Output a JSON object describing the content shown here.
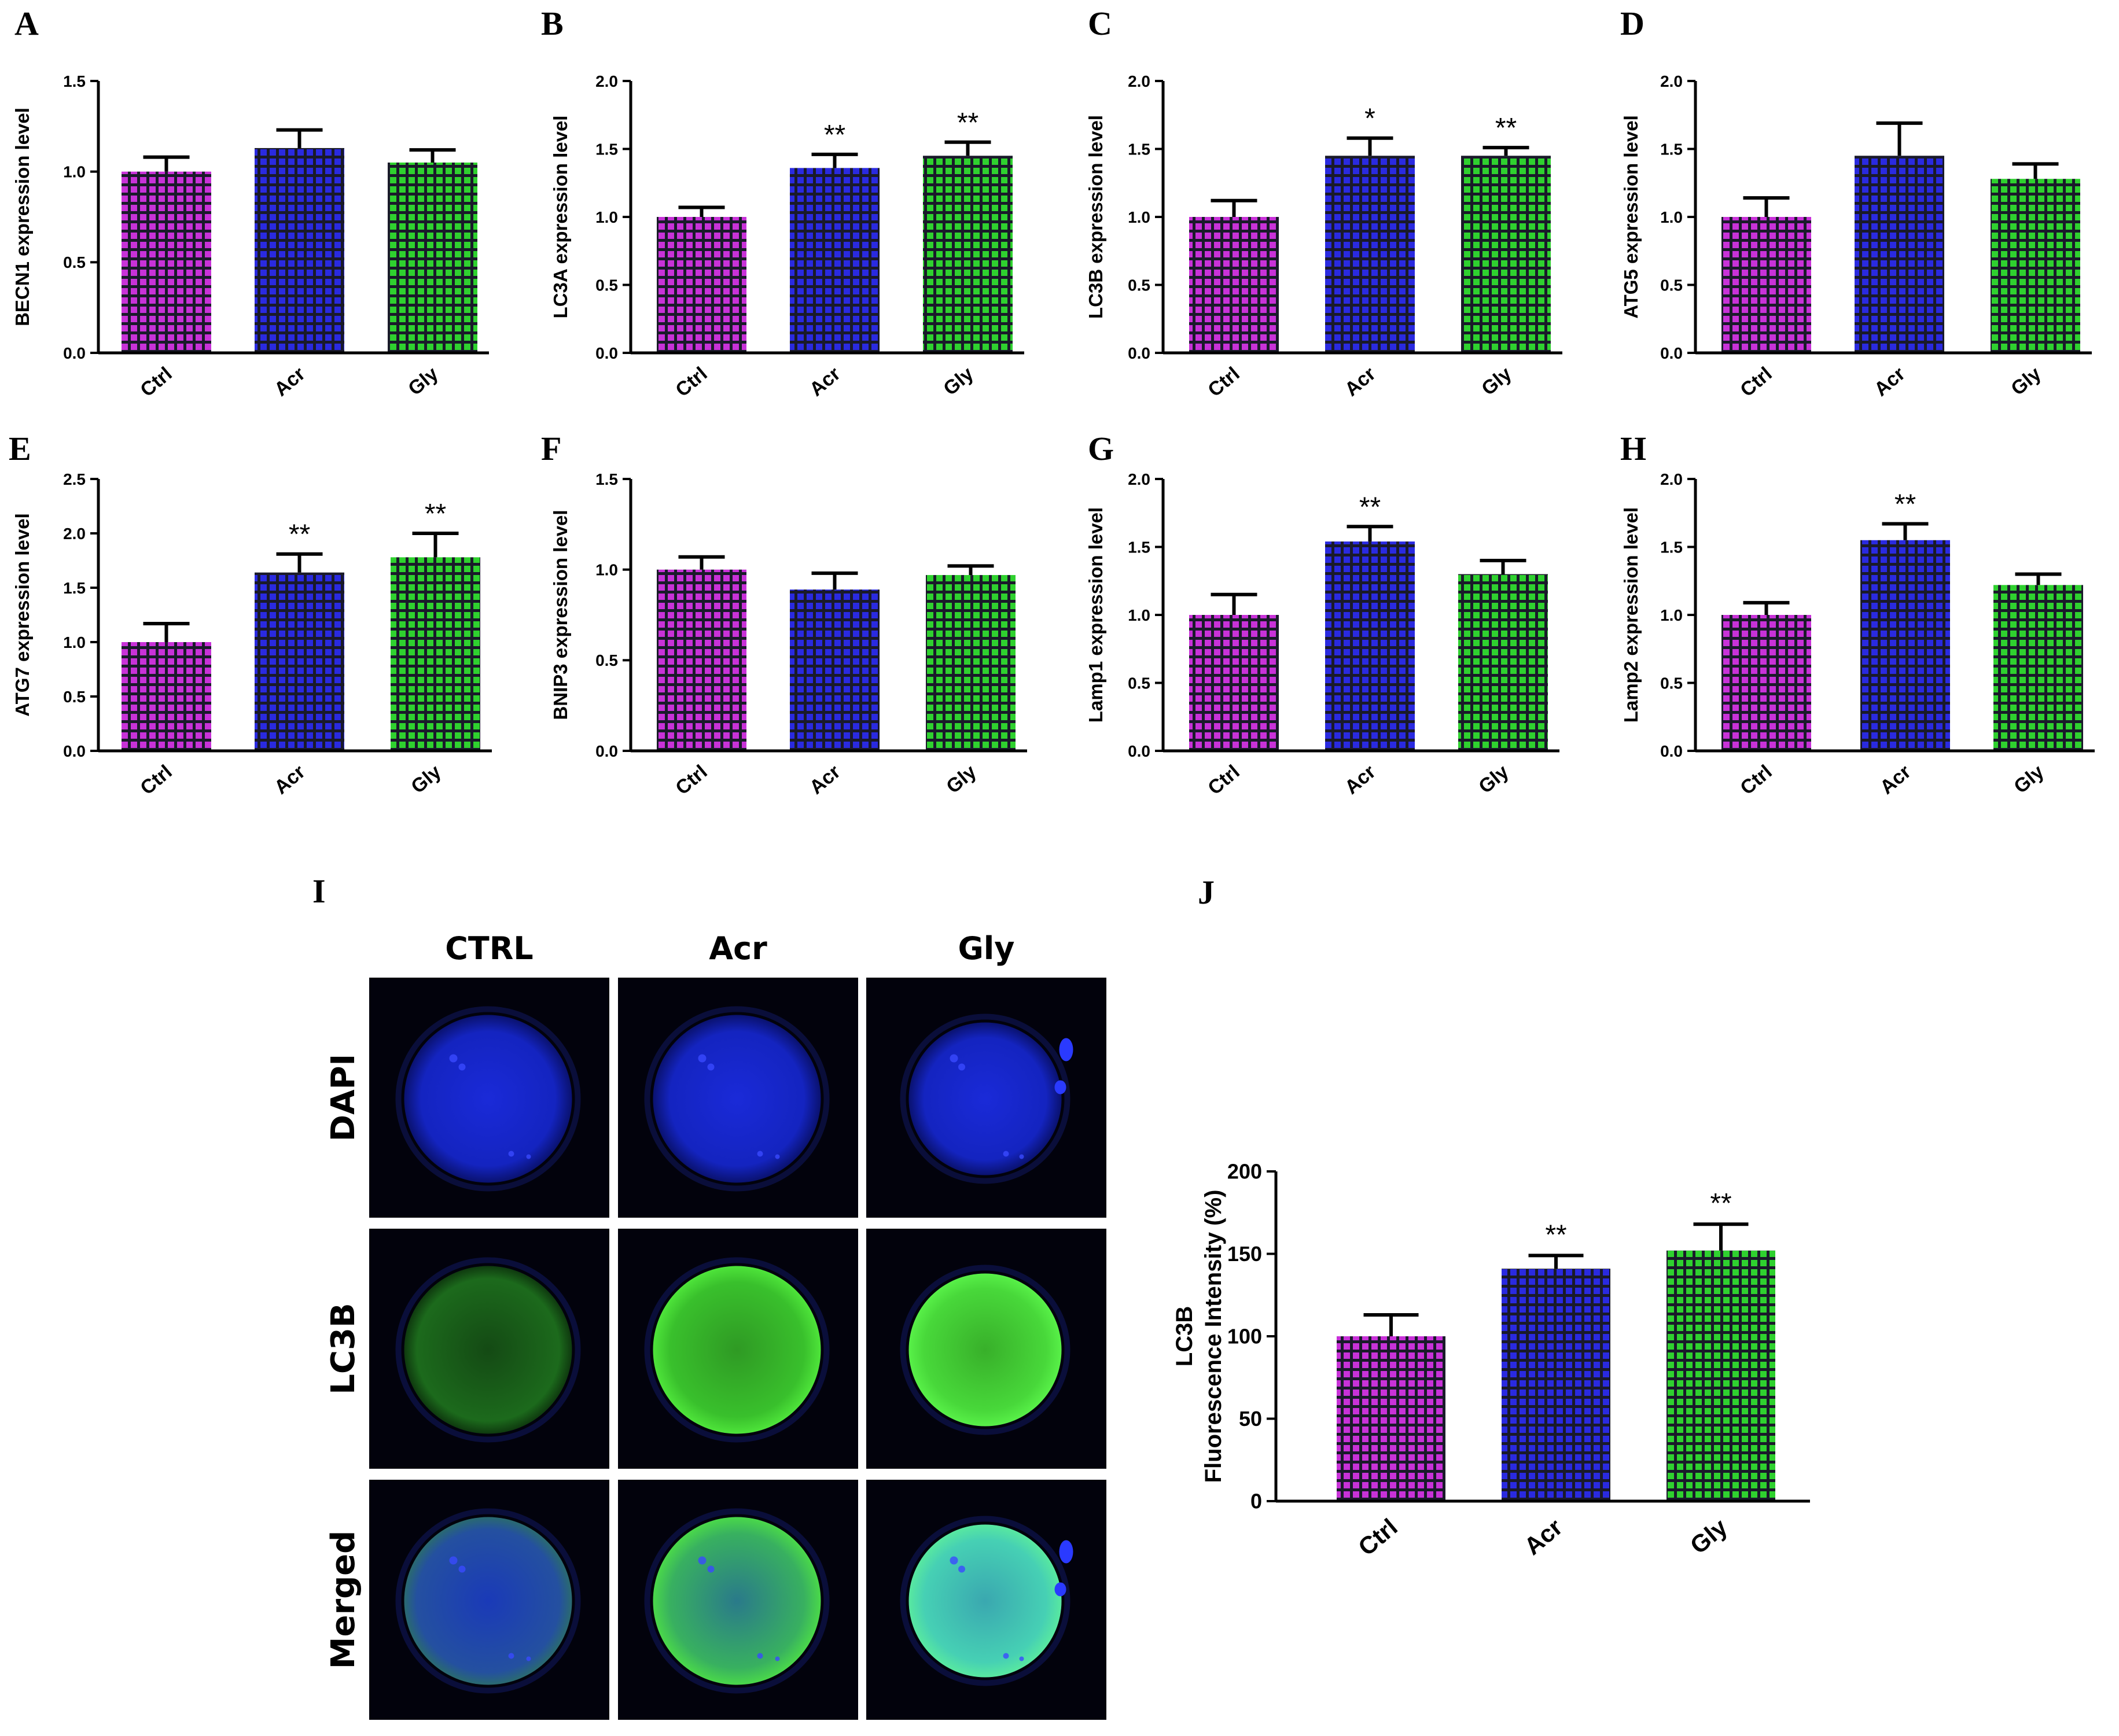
{
  "colors": {
    "ctrl": "#c832d8",
    "acr": "#2a2ae0",
    "gly": "#2fd12f",
    "bar_background": "#1a1a2a"
  },
  "chart_data": [
    {
      "panel": "A",
      "type": "bar",
      "ylabel": "BECN1 expression level",
      "categories": [
        "Ctrl",
        "Acr",
        "Gly"
      ],
      "values": [
        1.0,
        1.13,
        1.05
      ],
      "errors": [
        0.08,
        0.1,
        0.07
      ],
      "significance": [
        "",
        "",
        ""
      ],
      "ylim": [
        0,
        1.5
      ],
      "yticks": [
        "0.0",
        "0.5",
        "1.0",
        "1.5"
      ]
    },
    {
      "panel": "B",
      "type": "bar",
      "ylabel": "LC3A expression level",
      "categories": [
        "Ctrl",
        "Acr",
        "Gly"
      ],
      "values": [
        1.0,
        1.36,
        1.45
      ],
      "errors": [
        0.07,
        0.1,
        0.1
      ],
      "significance": [
        "",
        "**",
        "**"
      ],
      "ylim": [
        0,
        2.0
      ],
      "yticks": [
        "0.0",
        "0.5",
        "1.0",
        "1.5",
        "2.0"
      ]
    },
    {
      "panel": "C",
      "type": "bar",
      "ylabel": "LC3B expression level",
      "categories": [
        "Ctrl",
        "Acr",
        "Gly"
      ],
      "values": [
        1.0,
        1.45,
        1.45
      ],
      "errors": [
        0.12,
        0.13,
        0.06
      ],
      "significance": [
        "",
        "*",
        "**"
      ],
      "ylim": [
        0,
        2.0
      ],
      "yticks": [
        "0.0",
        "0.5",
        "1.0",
        "1.5",
        "2.0"
      ]
    },
    {
      "panel": "D",
      "type": "bar",
      "ylabel": "ATG5 expression level",
      "categories": [
        "Ctrl",
        "Acr",
        "Gly"
      ],
      "values": [
        1.0,
        1.45,
        1.28
      ],
      "errors": [
        0.14,
        0.24,
        0.11
      ],
      "significance": [
        "",
        "",
        ""
      ],
      "ylim": [
        0,
        2.0
      ],
      "yticks": [
        "0.0",
        "0.5",
        "1.0",
        "1.5",
        "2.0"
      ]
    },
    {
      "panel": "E",
      "type": "bar",
      "ylabel": "ATG7 expression level",
      "categories": [
        "Ctrl",
        "Acr",
        "Gly"
      ],
      "values": [
        1.0,
        1.64,
        1.78
      ],
      "errors": [
        0.17,
        0.17,
        0.22
      ],
      "significance": [
        "",
        "**",
        "**"
      ],
      "ylim": [
        0,
        2.5
      ],
      "yticks": [
        "0.0",
        "0.5",
        "1.0",
        "1.5",
        "2.0",
        "2.5"
      ]
    },
    {
      "panel": "F",
      "type": "bar",
      "ylabel": "BNIP3 expression level",
      "categories": [
        "Ctrl",
        "Acr",
        "Gly"
      ],
      "values": [
        1.0,
        0.89,
        0.97
      ],
      "errors": [
        0.07,
        0.09,
        0.05
      ],
      "significance": [
        "",
        "",
        ""
      ],
      "ylim": [
        0,
        1.5
      ],
      "yticks": [
        "0.0",
        "0.5",
        "1.0",
        "1.5"
      ]
    },
    {
      "panel": "G",
      "type": "bar",
      "ylabel": "Lamp1 expression level",
      "categories": [
        "Ctrl",
        "Acr",
        "Gly"
      ],
      "values": [
        1.0,
        1.54,
        1.3
      ],
      "errors": [
        0.15,
        0.11,
        0.1
      ],
      "significance": [
        "",
        "**",
        ""
      ],
      "ylim": [
        0,
        2.0
      ],
      "yticks": [
        "0.0",
        "0.5",
        "1.0",
        "1.5",
        "2.0"
      ]
    },
    {
      "panel": "H",
      "type": "bar",
      "ylabel": "Lamp2 expression level",
      "categories": [
        "Ctrl",
        "Acr",
        "Gly"
      ],
      "values": [
        1.0,
        1.55,
        1.22
      ],
      "errors": [
        0.09,
        0.12,
        0.08
      ],
      "significance": [
        "",
        "**",
        ""
      ],
      "ylim": [
        0,
        2.0
      ],
      "yticks": [
        "0.0",
        "0.5",
        "1.0",
        "1.5",
        "2.0"
      ]
    },
    {
      "panel": "J",
      "type": "bar",
      "ylabel": [
        "LC3B",
        "Fluorescence Intensity (%)"
      ],
      "categories": [
        "Ctrl",
        "Acr",
        "Gly"
      ],
      "values": [
        100,
        141,
        152
      ],
      "errors": [
        13,
        8,
        16
      ],
      "significance": [
        "",
        "**",
        "**"
      ],
      "ylim": [
        0,
        200
      ],
      "yticks": [
        "0",
        "50",
        "100",
        "150",
        "200"
      ]
    }
  ],
  "micrograph": {
    "panel": "I",
    "columns": [
      "CTRL",
      "Acr",
      "Gly"
    ],
    "rows": [
      "DAPI",
      "LC3B",
      "Merged"
    ]
  }
}
